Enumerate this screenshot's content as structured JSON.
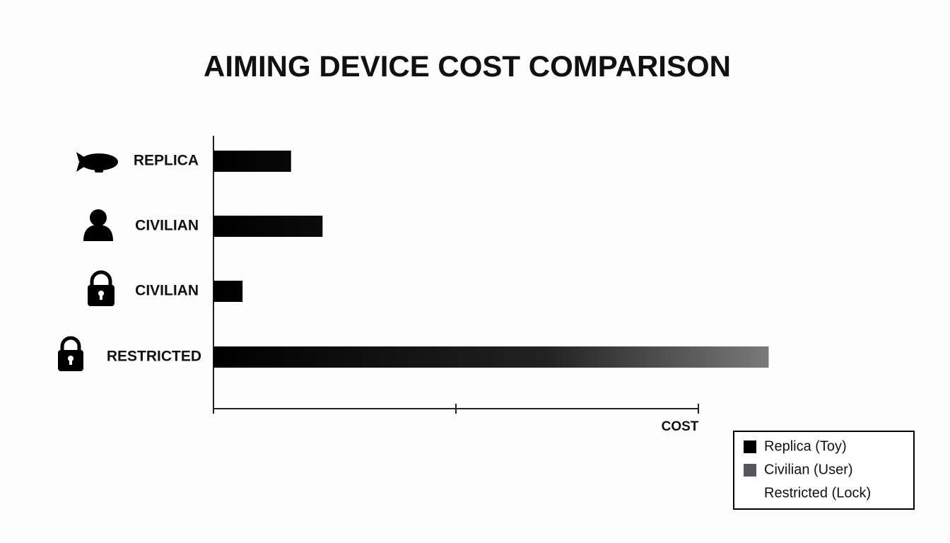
{
  "chart_data": {
    "type": "bar",
    "orientation": "horizontal",
    "title": "AIMING DEVICE COST COMPARISON",
    "categories": [
      "REPLICA",
      "CIVILIAN",
      "CIVILIAN",
      "RESTRICTED"
    ],
    "values": [
      0.32,
      0.45,
      0.12,
      2.29
    ],
    "color": "#000000",
    "xlabel": "COST",
    "xlim": [
      0,
      2
    ],
    "xticks": [
      0,
      1,
      2
    ],
    "legend": [
      {
        "name": "Replica (Toy)",
        "color": "#000000"
      },
      {
        "name": "Civilian (User)",
        "color": "#55585c"
      },
      {
        "name": "Restricted (Lock)",
        "color": "#ffffff"
      }
    ]
  }
}
